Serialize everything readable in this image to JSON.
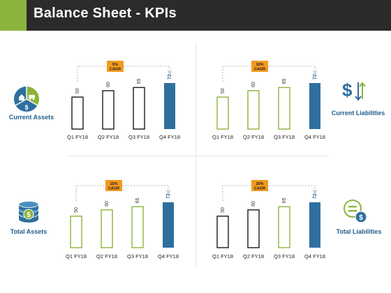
{
  "header": {
    "title": "Balance Sheet - KPIs"
  },
  "side_labels": {
    "current_assets": "Current Assets",
    "current_liabilities": "Current Liabilities",
    "total_assets": "Total Assets",
    "total_liabilities": "Total Liabilities"
  },
  "colors": {
    "header_bg": "#2b2b2b",
    "accent_green": "#8cb43c",
    "accent_blue": "#2e6f9e",
    "badge_orange": "#f29a1f",
    "label_blue": "#1f5f8b"
  },
  "icons": {
    "current_assets": "house-car-dollar-icon",
    "current_liabilities": "dollar-arrows-icon",
    "total_assets": "coin-stack-dollar-icon",
    "total_liabilities": "equals-coin-icon"
  },
  "chart_data": [
    {
      "type": "bar",
      "categories": [
        "Q1 FY18",
        "Q2 FY18",
        "Q3 FY18",
        "Q4 FY18"
      ],
      "values": [
        50,
        60,
        65,
        72
      ],
      "ylim": [
        0,
        72
      ],
      "badge": [
        "5%",
        "CAGR"
      ],
      "bar_styles": [
        "outline-black",
        "outline-black",
        "outline-black",
        "filled-blue"
      ]
    },
    {
      "type": "bar",
      "categories": [
        "Q1 FY18",
        "Q2 FY18",
        "Q3 FY18",
        "Q4 FY18"
      ],
      "values": [
        50,
        60,
        65,
        72
      ],
      "ylim": [
        0,
        72
      ],
      "badge": [
        "10%",
        "CAGR"
      ],
      "bar_styles": [
        "outline-green",
        "outline-green",
        "outline-green",
        "filled-blue"
      ]
    },
    {
      "type": "bar",
      "categories": [
        "Q1 FY18",
        "Q2 FY18",
        "Q3 FY18",
        "Q4 FY18"
      ],
      "values": [
        50,
        60,
        65,
        72
      ],
      "ylim": [
        0,
        72
      ],
      "badge": [
        "15%",
        "CAGR"
      ],
      "bar_styles": [
        "outline-green",
        "outline-green",
        "outline-green",
        "filled-blue"
      ]
    },
    {
      "type": "bar",
      "categories": [
        "Q1 FY18",
        "Q2 FY18",
        "Q3 FY18",
        "Q4 FY18"
      ],
      "values": [
        50,
        60,
        65,
        72
      ],
      "ylim": [
        0,
        72
      ],
      "badge": [
        "20%",
        "CAGR"
      ],
      "bar_styles": [
        "outline-black",
        "outline-black",
        "outline-green",
        "filled-blue"
      ]
    }
  ]
}
